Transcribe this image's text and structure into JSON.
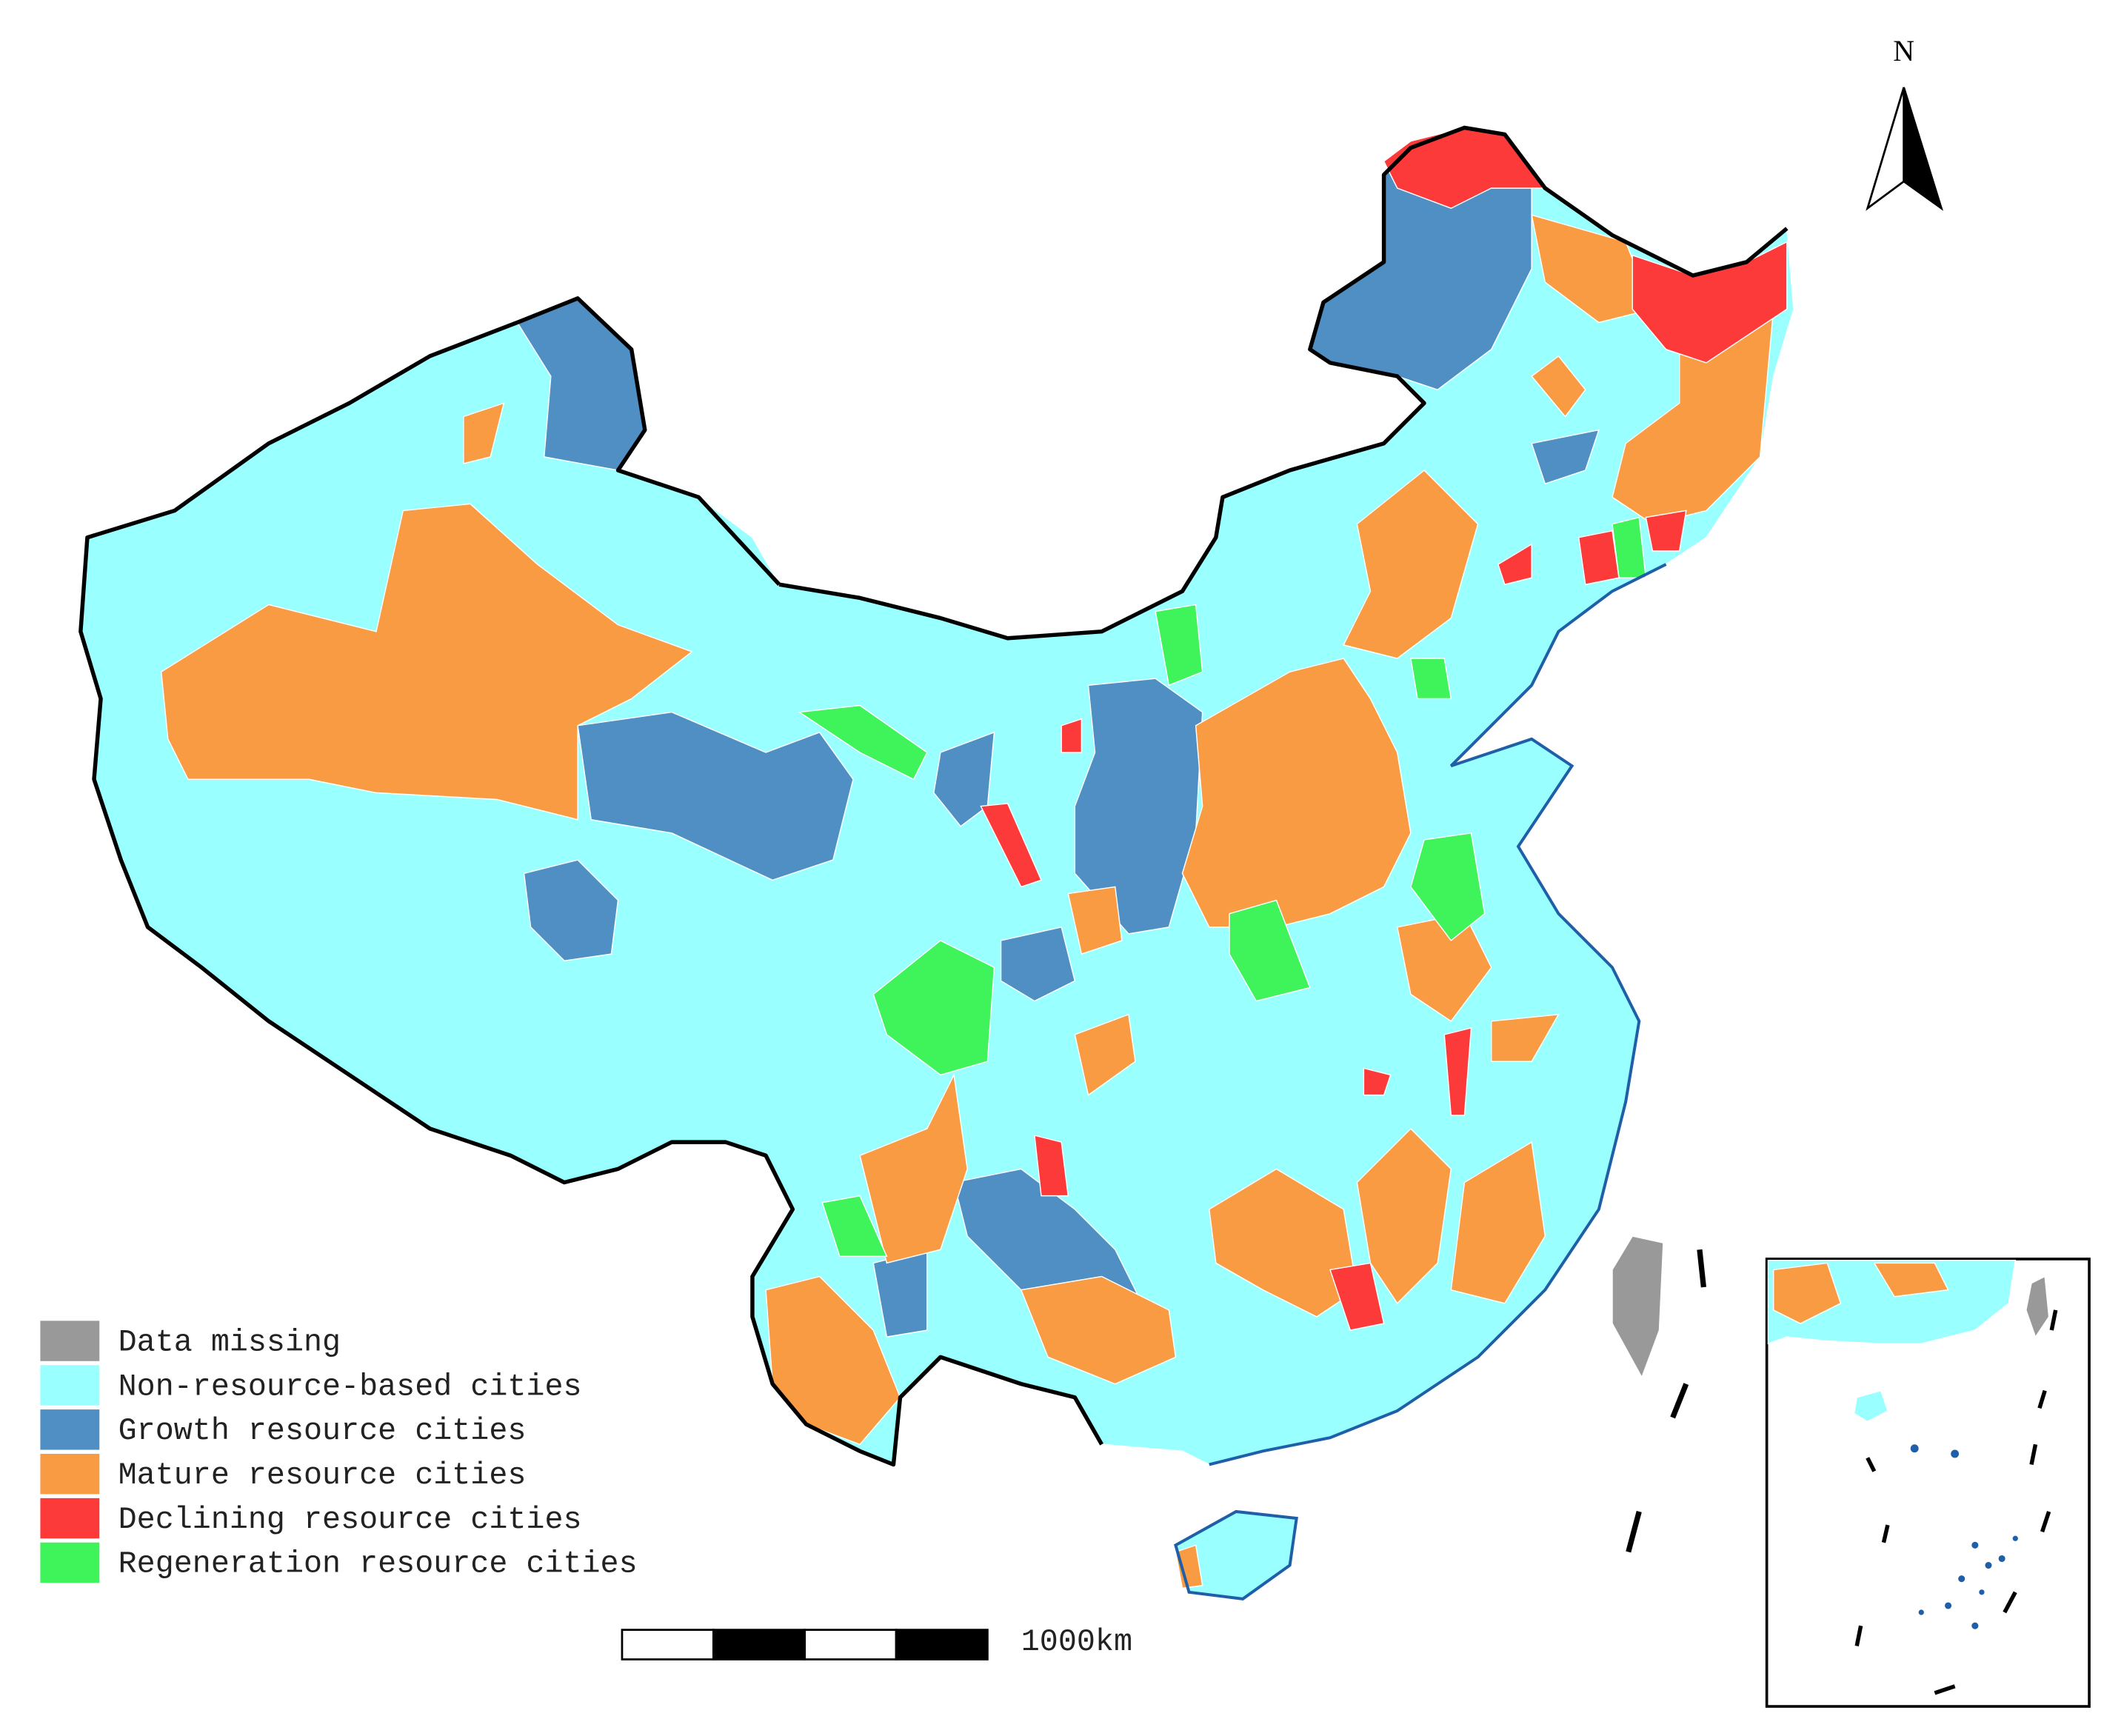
{
  "legend": {
    "items": [
      {
        "label": "Data missing",
        "color": "#999999"
      },
      {
        "label": "Non-resource-based cities",
        "color": "#99ffff"
      },
      {
        "label": "Growth resource cities",
        "color": "#4f8fc3"
      },
      {
        "label": "Mature resource cities",
        "color": "#f99b43"
      },
      {
        "label": "Declining resource cities",
        "color": "#fc3a3a"
      },
      {
        "label": "Regeneration resource cities",
        "color": "#3ef45a"
      }
    ]
  },
  "north_arrow": {
    "label": "N"
  },
  "scale_bar": {
    "label": "1000km"
  }
}
